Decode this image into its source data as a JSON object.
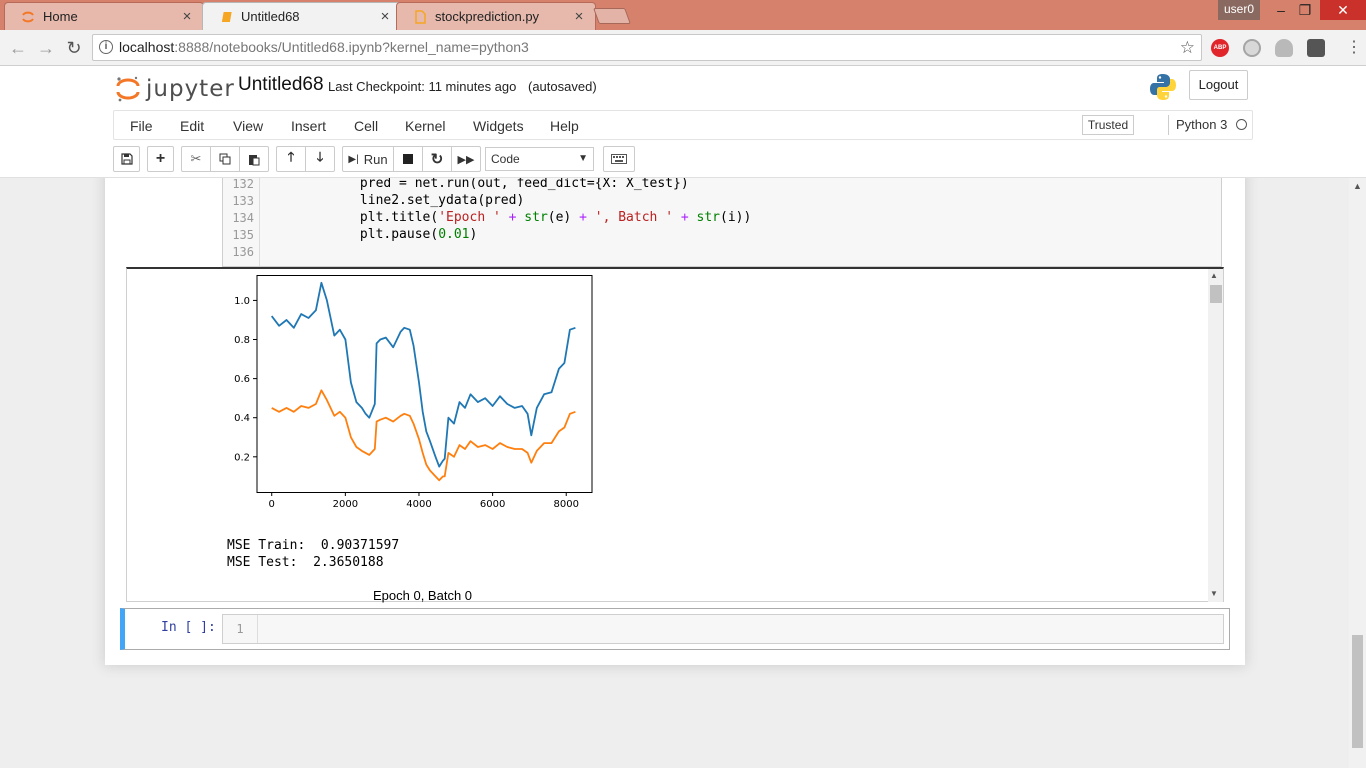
{
  "browser": {
    "tabs": [
      {
        "title": "Home",
        "icon": "jupyter-tab-icon",
        "close": "×"
      },
      {
        "title": "Untitled68",
        "icon": "notebook-tab-icon",
        "close": "×"
      },
      {
        "title": "stockprediction.py",
        "icon": "file-tab-icon",
        "close": "×"
      }
    ],
    "user": "user0",
    "window_controls": {
      "minimize": "–",
      "restore": "❐",
      "close": "✕"
    },
    "url_host": "localhost",
    "url_path": ":8888/notebooks/Untitled68.ipynb?kernel_name=python3",
    "back": "←",
    "forward": "→",
    "reload": "↻",
    "bookmark": "☆",
    "extensions": [
      "adblock-icon",
      "globe-icon",
      "cloud-icon",
      "camera-icon"
    ],
    "adblock_label": "ABP",
    "menu": "⋮"
  },
  "jupyter": {
    "logo": "jupyter",
    "notebook_name": "Untitled68",
    "checkpoint": "Last Checkpoint: 11 minutes ago",
    "autosaved": "(autosaved)",
    "logout": "Logout",
    "menu": [
      "File",
      "Edit",
      "View",
      "Insert",
      "Cell",
      "Kernel",
      "Widgets",
      "Help"
    ],
    "trusted": "Trusted",
    "kernel": "Python 3",
    "toolbar": {
      "run_label": "Run",
      "cell_type": "Code",
      "icons": [
        "save-icon",
        "add-cell-icon",
        "cut-icon",
        "copy-icon",
        "paste-icon",
        "move-up-icon",
        "move-down-icon",
        "run-icon",
        "stop-icon",
        "restart-icon",
        "fast-forward-icon",
        "keyboard-icon"
      ]
    }
  },
  "cell": {
    "line_numbers": [
      "132",
      "133",
      "134",
      "135",
      "136"
    ],
    "lines": {
      "l132": {
        "a": "            pred = net.run(out, feed_dict={X: X_test})"
      },
      "l133": {
        "a": "            line2.set_ydata(pred)"
      },
      "l134": {
        "a": "            plt.title(",
        "s1": "'Epoch '",
        "op1": " + ",
        "bi1": "str",
        "b": "(e)",
        "op2": " + ",
        "s2": "', Batch '",
        "op3": " + ",
        "bi2": "str",
        "c": "(i))"
      },
      "l135": {
        "a": "            plt.pause(",
        "n": "0.01",
        "b": ")"
      },
      "l136": {
        "a": ""
      }
    }
  },
  "output": {
    "mse_train": "MSE Train:  0.90371597",
    "mse_test": "MSE Test:  2.3650188",
    "next_plot_title": "Epoch 0, Batch 0"
  },
  "new_cell": {
    "prompt": "In [ ]:",
    "line_number": "1"
  },
  "chart_data": {
    "type": "line",
    "title": "",
    "xlabel": "",
    "ylabel": "",
    "xlim": [
      -400,
      8700
    ],
    "ylim": [
      0.02,
      1.13
    ],
    "xticks": [
      0,
      2000,
      4000,
      6000,
      8000
    ],
    "yticks": [
      0.2,
      0.4,
      0.6,
      0.8,
      1.0
    ],
    "ytick_labels": [
      "0.2",
      "0.4",
      "0.6",
      "0.8",
      "1.0"
    ],
    "series": [
      {
        "color": "#1f77b4",
        "x": [
          0,
          200,
          400,
          600,
          800,
          1000,
          1200,
          1350,
          1500,
          1700,
          1850,
          2000,
          2150,
          2300,
          2450,
          2550,
          2650,
          2800,
          2850,
          2950,
          3100,
          3300,
          3500,
          3600,
          3750,
          3850,
          4000,
          4100,
          4200,
          4300,
          4450,
          4550,
          4650,
          4700,
          4800,
          4950,
          5100,
          5250,
          5400,
          5600,
          5800,
          6000,
          6200,
          6400,
          6600,
          6800,
          6950,
          7050,
          7200,
          7400,
          7600,
          7800,
          7950,
          8100,
          8250
        ],
        "y": [
          0.92,
          0.87,
          0.9,
          0.86,
          0.93,
          0.91,
          0.95,
          1.09,
          1.0,
          0.82,
          0.85,
          0.8,
          0.58,
          0.48,
          0.45,
          0.42,
          0.4,
          0.47,
          0.78,
          0.8,
          0.81,
          0.76,
          0.84,
          0.86,
          0.85,
          0.77,
          0.58,
          0.43,
          0.33,
          0.28,
          0.2,
          0.15,
          0.18,
          0.19,
          0.4,
          0.37,
          0.48,
          0.45,
          0.52,
          0.48,
          0.5,
          0.46,
          0.51,
          0.47,
          0.45,
          0.46,
          0.42,
          0.31,
          0.45,
          0.52,
          0.53,
          0.65,
          0.68,
          0.85,
          0.86
        ]
      },
      {
        "color": "#ff7f0e",
        "x": [
          0,
          200,
          400,
          600,
          800,
          1000,
          1200,
          1350,
          1500,
          1700,
          1850,
          2000,
          2150,
          2300,
          2450,
          2550,
          2650,
          2800,
          2850,
          2950,
          3100,
          3300,
          3500,
          3600,
          3750,
          3850,
          4000,
          4100,
          4200,
          4300,
          4450,
          4550,
          4650,
          4700,
          4800,
          4950,
          5100,
          5250,
          5400,
          5600,
          5800,
          6000,
          6200,
          6400,
          6600,
          6800,
          6950,
          7050,
          7200,
          7400,
          7600,
          7800,
          7950,
          8100,
          8250
        ],
        "y": [
          0.45,
          0.43,
          0.45,
          0.43,
          0.46,
          0.45,
          0.47,
          0.54,
          0.49,
          0.41,
          0.43,
          0.4,
          0.3,
          0.25,
          0.23,
          0.22,
          0.21,
          0.24,
          0.38,
          0.39,
          0.4,
          0.38,
          0.41,
          0.42,
          0.41,
          0.37,
          0.29,
          0.22,
          0.16,
          0.13,
          0.1,
          0.08,
          0.1,
          0.1,
          0.22,
          0.2,
          0.26,
          0.24,
          0.28,
          0.25,
          0.26,
          0.24,
          0.27,
          0.25,
          0.24,
          0.24,
          0.22,
          0.17,
          0.23,
          0.27,
          0.27,
          0.33,
          0.35,
          0.42,
          0.43
        ]
      }
    ]
  }
}
